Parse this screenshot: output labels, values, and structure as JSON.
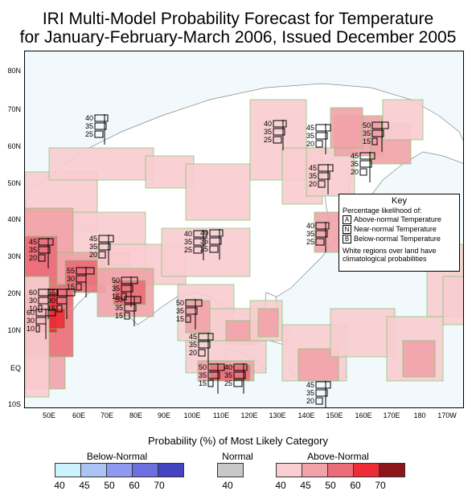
{
  "title": {
    "line1": "IRI Multi-Model Probability Forecast for Temperature",
    "line2": "for January-February-March 2006, Issued December 2005"
  },
  "map": {
    "lat_labels": [
      "80N",
      "70N",
      "60N",
      "50N",
      "40N",
      "30N",
      "20N",
      "10N",
      "EQ",
      "10S"
    ],
    "lon_labels": [
      "50E",
      "60E",
      "70E",
      "80E",
      "90E",
      "100E",
      "110E",
      "120E",
      "130E",
      "140E",
      "150E",
      "160E",
      "170E",
      "180",
      "170W"
    ],
    "colors": {
      "ocean": "#f1f9fd",
      "land": "#ffffff",
      "above_40": "#f9cdd1",
      "above_45": "#f2a3aa",
      "above_50": "#ec6c77",
      "above_60": "#ee2c35",
      "above_70": "#8b1519",
      "region_outline": "#7fc56a",
      "coastline": "#888888"
    }
  },
  "annotations": [
    {
      "a": "40",
      "n": "35",
      "b": "25"
    },
    {
      "a": "40",
      "n": "35",
      "b": "25"
    },
    {
      "a": "45",
      "n": "35",
      "b": "20"
    },
    {
      "a": "50",
      "n": "35",
      "b": "15"
    },
    {
      "a": "45",
      "n": "35",
      "b": "20"
    },
    {
      "a": "45",
      "n": "35",
      "b": "20"
    },
    {
      "a": "40",
      "n": "35",
      "b": "25"
    },
    {
      "a": "45",
      "n": "35",
      "b": "20"
    },
    {
      "a": "45",
      "n": "35",
      "b": "20"
    },
    {
      "a": "40",
      "n": "35",
      "b": "25"
    },
    {
      "a": "60",
      "n": "30",
      "b": "10"
    },
    {
      "a": "55",
      "n": "30",
      "b": "15"
    },
    {
      "a": "55",
      "n": "30",
      "b": "15"
    },
    {
      "a": "50",
      "n": "35",
      "b": "15"
    },
    {
      "a": "60",
      "n": "30",
      "b": "10"
    },
    {
      "a": "50",
      "n": "35",
      "b": "15"
    },
    {
      "a": "40",
      "n": "35",
      "b": "25"
    },
    {
      "a": "50",
      "n": "35",
      "b": "15"
    },
    {
      "a": "45",
      "n": "35",
      "b": "20"
    },
    {
      "a": "50",
      "n": "35",
      "b": "15"
    },
    {
      "a": "40",
      "n": "35",
      "b": "25"
    },
    {
      "a": "45",
      "n": "35",
      "b": "20"
    }
  ],
  "key": {
    "title": "Key",
    "subtitle": "Percentage likelihood of:",
    "items": [
      {
        "letter": "A",
        "label": "Above-normal Temperature"
      },
      {
        "letter": "N",
        "label": "Near-normal Temperature"
      },
      {
        "letter": "B",
        "label": "Below-normal Temperature"
      }
    ],
    "note_line1": "White regions over land have",
    "note_line2": "climatological probabilities"
  },
  "legend": {
    "title": "Probability (%) of Most Likely Category",
    "below_label": "Below-Normal",
    "normal_label": "Normal",
    "above_label": "Above-Normal",
    "below_ticks": [
      "40",
      "45",
      "50",
      "60",
      "70"
    ],
    "normal_ticks": [
      "40"
    ],
    "above_ticks": [
      "40",
      "45",
      "50",
      "60",
      "70"
    ],
    "below_colors": [
      "#ccf2fc",
      "#aac4f5",
      "#8f99ef",
      "#6b6fe0",
      "#4444c2"
    ],
    "normal_colors": [
      "#c8c8c8"
    ],
    "above_colors": [
      "#f9cdd1",
      "#f2a3aa",
      "#ec6c77",
      "#ee2c35",
      "#8b1519"
    ]
  }
}
